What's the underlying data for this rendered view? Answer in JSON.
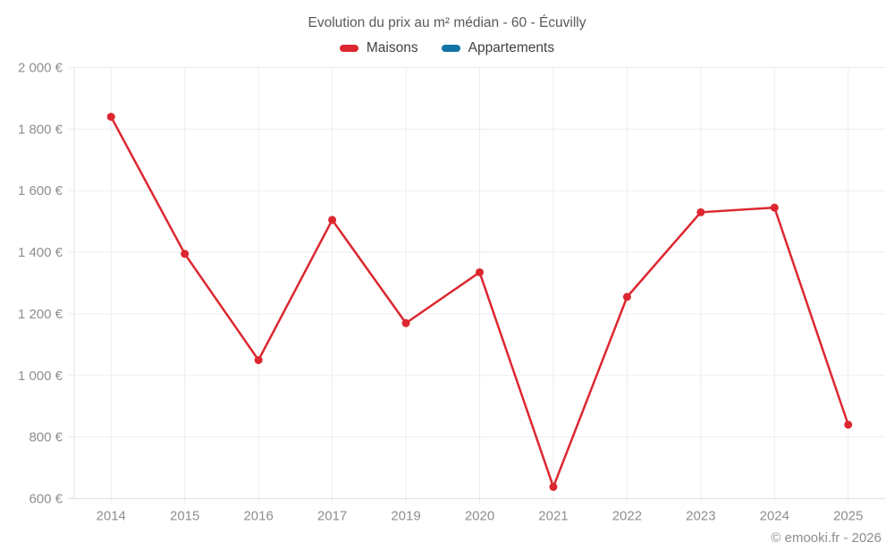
{
  "chart_data": {
    "type": "line",
    "title": "Evolution du prix au m² médian - 60 - Écuvilly",
    "categories": [
      "2014",
      "2015",
      "2016",
      "2017",
      "2019",
      "2020",
      "2021",
      "2022",
      "2023",
      "2024",
      "2025"
    ],
    "series": [
      {
        "name": "Maisons",
        "color": "#dc2730",
        "values": [
          1840,
          1395,
          1050,
          1505,
          1170,
          1335,
          638,
          1255,
          1530,
          1545,
          840
        ]
      },
      {
        "name": "Appartements",
        "color": "#1273a5",
        "values": []
      }
    ],
    "ylim": [
      600,
      2000
    ],
    "y_ticks": [
      600,
      800,
      1000,
      1200,
      1400,
      1600,
      1800,
      2000
    ],
    "y_tick_labels": [
      "600 €",
      "800 €",
      "1 000 €",
      "1 200 €",
      "1 400 €",
      "1 600 €",
      "1 800 €",
      "2 000 €"
    ],
    "grid": true,
    "legend_position": "top",
    "marker": "circle"
  },
  "colors": {
    "grid": "#ededed",
    "axis": "#e0e0e0",
    "tick_text": "#8e8e8e",
    "title_text": "#595959",
    "legend_text": "#404040",
    "footer_text": "#8e8e8e"
  },
  "footer": {
    "copyright": "© emooki.fr - 2026"
  }
}
